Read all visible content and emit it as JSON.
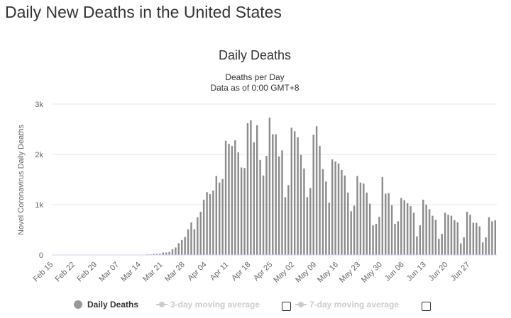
{
  "page": {
    "title": "Daily New Deaths in the United States"
  },
  "legend": {
    "daily_deaths": "Daily Deaths",
    "avg3": "3-day moving average",
    "avg7": "7-day moving average"
  },
  "colors": {
    "bar": "#8c8c8c",
    "grid": "#e6e6e6",
    "axis": "#ccd6eb",
    "text": "#333333",
    "muted": "#666666",
    "legend_disabled": "#cccccc"
  },
  "chart_data": {
    "type": "bar",
    "title": "Daily Deaths",
    "subtitle": [
      "Deaths per Day",
      "Data as of 0:00 GMT+8"
    ],
    "xlabel": "",
    "ylabel": "Novel Coronavirus Daily Deaths",
    "ylim": [
      0,
      3000
    ],
    "yticks": [
      0,
      1000,
      2000,
      3000
    ],
    "ytick_labels": [
      "0",
      "1k",
      "2k",
      "3k"
    ],
    "start_date": "Feb 15",
    "xtick_labels": [
      "Feb 15",
      "Feb 22",
      "Feb 29",
      "Mar 07",
      "Mar 14",
      "Mar 21",
      "Mar 28",
      "Apr 04",
      "Apr 11",
      "Apr 18",
      "Apr 25",
      "May 02",
      "May 09",
      "May 16",
      "May 23",
      "May 30",
      "Jun 06",
      "Jun 13",
      "Jun 20",
      "Jun 27"
    ],
    "grid": true,
    "legend_position": "bottom",
    "series": [
      {
        "name": "Daily Deaths",
        "values": [
          0,
          0,
          0,
          0,
          0,
          0,
          0,
          0,
          0,
          0,
          0,
          0,
          0,
          0,
          0,
          0,
          1,
          0,
          1,
          0,
          1,
          0,
          0,
          0,
          1,
          2,
          2,
          3,
          5,
          4,
          12,
          13,
          21,
          22,
          26,
          50,
          49,
          60,
          112,
          148,
          235,
          298,
          356,
          510,
          646,
          511,
          750,
          860,
          1100,
          1250,
          1210,
          1280,
          1570,
          1440,
          1510,
          2270,
          2210,
          2170,
          2280,
          2040,
          1740,
          1730,
          2620,
          2680,
          2240,
          2580,
          1890,
          1580,
          1970,
          2730,
          2400,
          2400,
          1960,
          2080,
          1150,
          1390,
          2530,
          2460,
          2340,
          1990,
          1720,
          1150,
          1330,
          2390,
          2560,
          2170,
          1710,
          1460,
          1040,
          1900,
          1860,
          1820,
          1690,
          1580,
          1240,
          870,
          980,
          1570,
          1440,
          1420,
          1240,
          1020,
          590,
          620,
          760,
          1550,
          1220,
          1230,
          990,
          620,
          670,
          1130,
          1090,
          1030,
          970,
          840,
          370,
          590,
          1100,
          1000,
          910,
          780,
          700,
          320,
          420,
          840,
          800,
          780,
          690,
          650,
          230,
          350,
          860,
          800,
          640,
          640,
          570,
          250,
          350,
          750,
          670,
          690
        ]
      }
    ]
  }
}
